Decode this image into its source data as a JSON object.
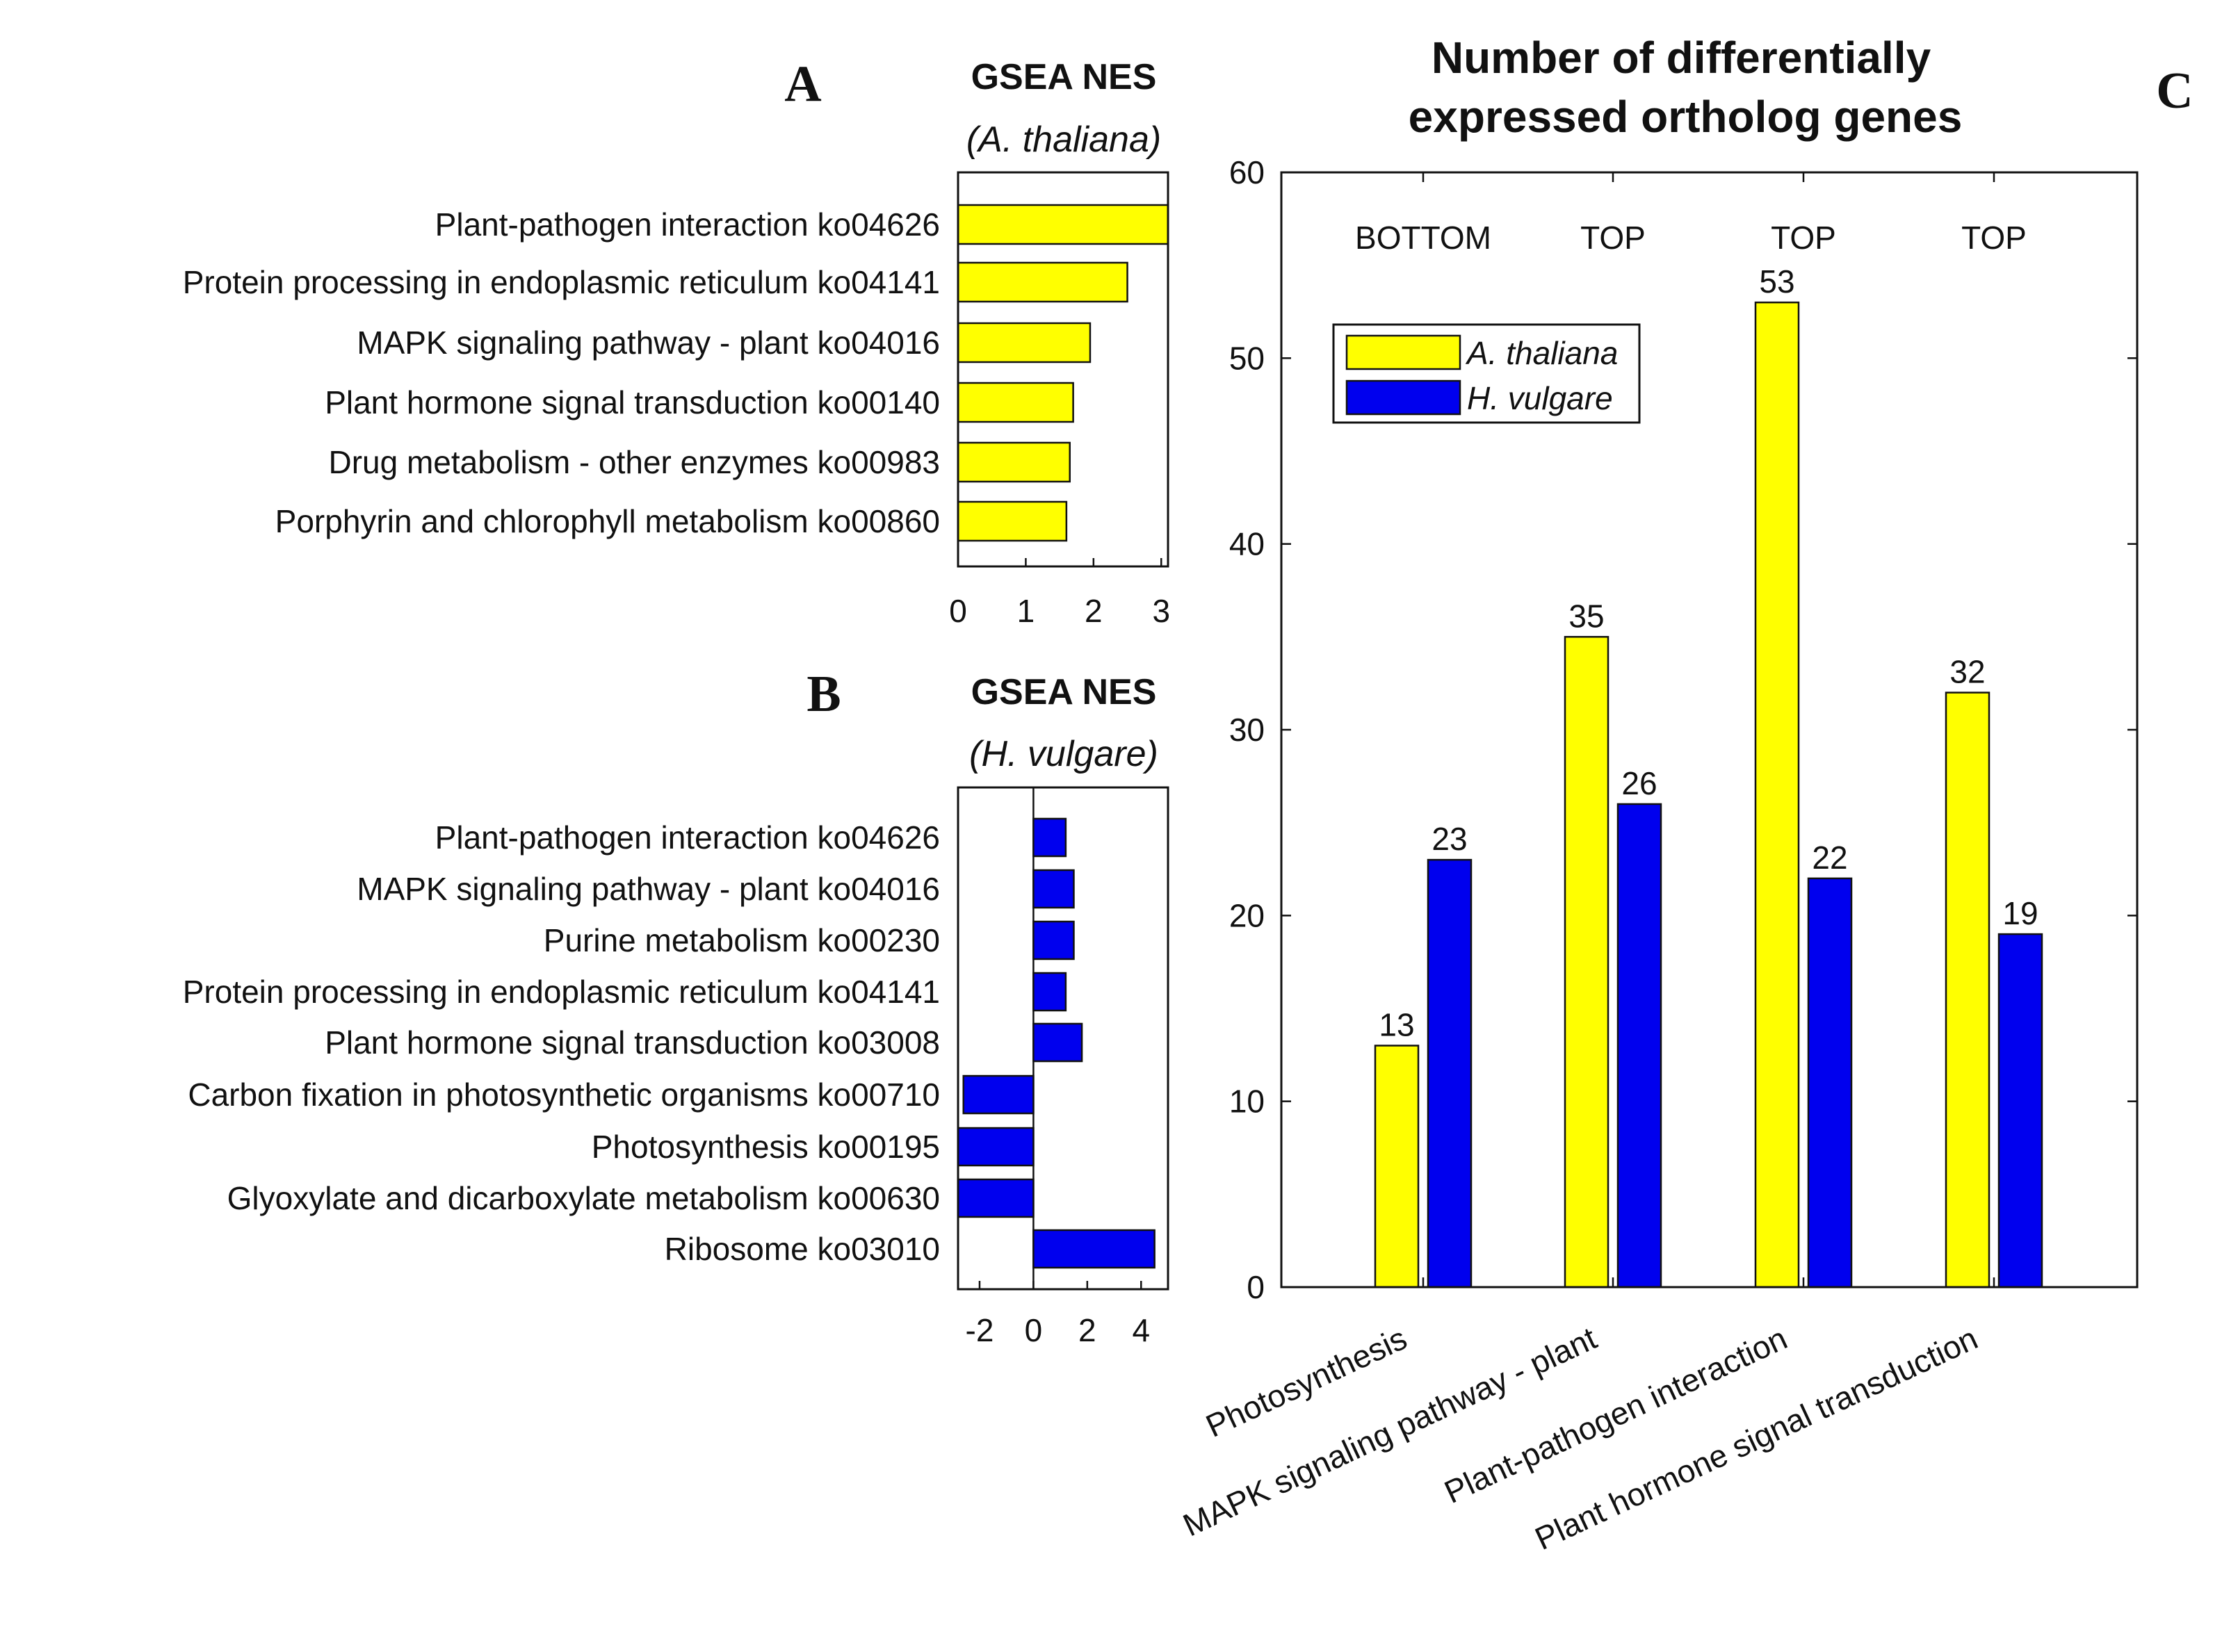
{
  "colors": {
    "athaliana": "#ffff00",
    "hvulgare": "#0000ee",
    "axis": "#111111"
  },
  "chart_data": [
    {
      "panel": "A",
      "type": "bar",
      "orientation": "horizontal",
      "title": "GSEA NES",
      "subtitle": "(A. thaliana)",
      "categories": [
        "Plant-pathogen interaction ko04626",
        "Protein processing in endoplasmic reticulum ko04141",
        "MAPK signaling pathway - plant ko04016",
        "Plant hormone signal transduction ko00140",
        "Drug metabolism - other enzymes ko00983",
        "Porphyrin and chlorophyll metabolism ko00860"
      ],
      "values": [
        3.1,
        2.5,
        1.95,
        1.7,
        1.65,
        1.6
      ],
      "xlim": [
        0,
        3.1
      ],
      "xticks": [
        "0",
        "1",
        "2",
        "3"
      ],
      "grid": false
    },
    {
      "panel": "B",
      "type": "bar",
      "orientation": "horizontal",
      "title": "GSEA NES",
      "subtitle": "(H. vulgare)",
      "categories": [
        "Plant-pathogen interaction ko04626",
        "MAPK signaling pathway - plant ko04016",
        "Purine metabolism ko00230",
        "Protein processing in endoplasmic reticulum ko04141",
        "Plant hormone signal transduction ko03008",
        "Carbon fixation in photosynthetic organisms ko00710",
        "Photosynthesis ko00195",
        "Glyoxylate and dicarboxylate metabolism ko00630",
        "Ribosome ko03010"
      ],
      "values": [
        1.2,
        1.5,
        1.5,
        1.2,
        1.8,
        -2.6,
        -2.8,
        -2.8,
        4.5
      ],
      "xlim": [
        -2.8,
        5.0
      ],
      "xticks": [
        "-2",
        "0",
        "2",
        "4"
      ],
      "grid": false
    },
    {
      "panel": "C",
      "type": "bar",
      "title": "Number of differentially expressed ortholog genes",
      "title_lines": [
        "Number of differentially",
        "expressed ortholog genes"
      ],
      "categories": [
        "Photosynthesis",
        "MAPK signaling pathway - plant",
        "Plant-pathogen interaction",
        "Plant hormone signal transduction"
      ],
      "group_annotations": [
        "BOTTOM",
        "TOP",
        "TOP",
        "TOP"
      ],
      "series": [
        {
          "name": "A. thaliana",
          "values": [
            13,
            35,
            53,
            32
          ]
        },
        {
          "name": "H. vulgare",
          "values": [
            23,
            26,
            22,
            19
          ]
        }
      ],
      "ylim": [
        0,
        60
      ],
      "yticks": [
        "0",
        "10",
        "20",
        "30",
        "40",
        "50",
        "60"
      ],
      "legend_position": "top-left",
      "grid": false
    }
  ]
}
